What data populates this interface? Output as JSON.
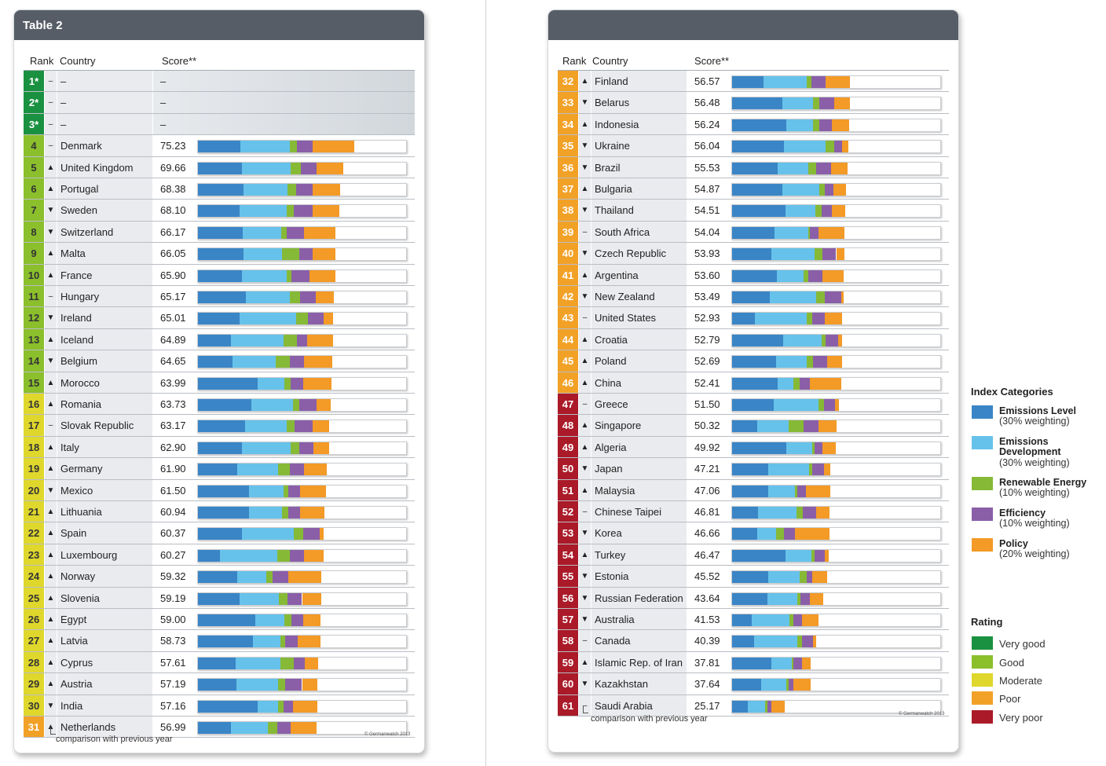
{
  "table_title": "Table 2",
  "headers": {
    "rank": "Rank",
    "country": "Country",
    "score": "Score**"
  },
  "footnote": "comparison with previous year",
  "copyright": "© Germanwatch 2013",
  "colors": {
    "emissions_level": "#3a85c6",
    "emissions_development": "#66c2ea",
    "renewable_energy": "#86b936",
    "efficiency": "#8a5fa8",
    "policy": "#f39a27",
    "very_good": "#1a9140",
    "good": "#8bbf2c",
    "moderate": "#dfd72c",
    "poor": "#f2a127",
    "very_poor": "#aa1a28"
  },
  "legend": {
    "title": "Index Categories",
    "items": [
      {
        "key": "emissions_level",
        "name": "Emissions Level",
        "weight": "(30% weighting)"
      },
      {
        "key": "emissions_development",
        "name": "Emissions Development",
        "weight": "(30% weighting)"
      },
      {
        "key": "renewable_energy",
        "name": "Renewable Energy",
        "weight": "(10% weighting)"
      },
      {
        "key": "efficiency",
        "name": "Efficiency",
        "weight": "(10% weighting)"
      },
      {
        "key": "policy",
        "name": "Policy",
        "weight": "(20% weighting)"
      }
    ]
  },
  "rating": {
    "title": "Rating",
    "items": [
      {
        "key": "very_good",
        "label": "Very good"
      },
      {
        "key": "good",
        "label": "Good"
      },
      {
        "key": "moderate",
        "label": "Moderate"
      },
      {
        "key": "poor",
        "label": "Poor"
      },
      {
        "key": "very_poor",
        "label": "Very poor"
      }
    ]
  },
  "chart_data": {
    "type": "bar",
    "stacked": true,
    "orientation": "horizontal",
    "title": "Table 2",
    "series_names": [
      "Emissions Level",
      "Emissions Development",
      "Renewable Energy",
      "Efficiency",
      "Policy"
    ],
    "xlim": [
      0,
      100
    ],
    "rows": [
      {
        "rank": "1*",
        "trend": "–",
        "country": "–",
        "score": "–",
        "rating": "very_good",
        "values": null
      },
      {
        "rank": "2*",
        "trend": "–",
        "country": "–",
        "score": "–",
        "rating": "very_good",
        "values": null
      },
      {
        "rank": "3*",
        "trend": "–",
        "country": "–",
        "score": "–",
        "rating": "very_good",
        "values": null
      },
      {
        "rank": "4",
        "trend": "–",
        "country": "Denmark",
        "score": "75.23",
        "rating": "good",
        "values": [
          20.5,
          23.5,
          3.5,
          7.5,
          20.2
        ]
      },
      {
        "rank": "5",
        "trend": "▲",
        "country": "United Kingdom",
        "score": "69.66",
        "rating": "good",
        "values": [
          21,
          23.5,
          5,
          7.5,
          12.7
        ]
      },
      {
        "rank": "6",
        "trend": "▲",
        "country": "Portugal",
        "score": "68.38",
        "rating": "good",
        "values": [
          22,
          21,
          4,
          8,
          13.4
        ]
      },
      {
        "rank": "7",
        "trend": "▼",
        "country": "Sweden",
        "score": "68.10",
        "rating": "good",
        "values": [
          20,
          22.5,
          3.5,
          9,
          13.1
        ]
      },
      {
        "rank": "8",
        "trend": "▼",
        "country": "Switzerland",
        "score": "66.17",
        "rating": "good",
        "values": [
          21.5,
          18.5,
          2.5,
          8.5,
          15.2
        ]
      },
      {
        "rank": "9",
        "trend": "▲",
        "country": "Malta",
        "score": "66.05",
        "rating": "good",
        "values": [
          22,
          18.5,
          8,
          6.5,
          11.1
        ]
      },
      {
        "rank": "10",
        "trend": "▲",
        "country": "France",
        "score": "65.90",
        "rating": "good",
        "values": [
          21,
          21.5,
          2.5,
          8.5,
          12.4
        ]
      },
      {
        "rank": "11",
        "trend": "–",
        "country": "Hungary",
        "score": "65.17",
        "rating": "good",
        "values": [
          23,
          21,
          5,
          7.5,
          8.7
        ]
      },
      {
        "rank": "12",
        "trend": "▼",
        "country": "Ireland",
        "score": "65.01",
        "rating": "good",
        "values": [
          20,
          27,
          6,
          7.5,
          4.5
        ]
      },
      {
        "rank": "13",
        "trend": "▲",
        "country": "Iceland",
        "score": "64.89",
        "rating": "good",
        "values": [
          16,
          25,
          6.5,
          5,
          12.4
        ]
      },
      {
        "rank": "14",
        "trend": "▼",
        "country": "Belgium",
        "score": "64.65",
        "rating": "good",
        "values": [
          16.5,
          21,
          6.5,
          7,
          13.7
        ]
      },
      {
        "rank": "15",
        "trend": "▲",
        "country": "Morocco",
        "score": "63.99",
        "rating": "good",
        "values": [
          28.5,
          13,
          3,
          6,
          13.5
        ]
      },
      {
        "rank": "16",
        "trend": "▲",
        "country": "Romania",
        "score": "63.73",
        "rating": "moderate",
        "values": [
          25.5,
          20,
          3,
          8.5,
          6.7
        ]
      },
      {
        "rank": "17",
        "trend": "–",
        "country": "Slovak Republic",
        "score": "63.17",
        "rating": "moderate",
        "values": [
          22.5,
          20,
          4,
          8.5,
          8.2
        ]
      },
      {
        "rank": "18",
        "trend": "▲",
        "country": "Italy",
        "score": "62.90",
        "rating": "moderate",
        "values": [
          21,
          23.5,
          4,
          7,
          7.4
        ]
      },
      {
        "rank": "19",
        "trend": "▲",
        "country": "Germany",
        "score": "61.90",
        "rating": "moderate",
        "values": [
          19,
          19.5,
          5.5,
          7,
          10.9
        ]
      },
      {
        "rank": "20",
        "trend": "▼",
        "country": "Mexico",
        "score": "61.50",
        "rating": "moderate",
        "values": [
          24.5,
          16.5,
          2.5,
          5.5,
          12.5
        ]
      },
      {
        "rank": "21",
        "trend": "▲",
        "country": "Lithuania",
        "score": "60.94",
        "rating": "moderate",
        "values": [
          24.5,
          16,
          3,
          5.5,
          11.9
        ]
      },
      {
        "rank": "22",
        "trend": "▲",
        "country": "Spain",
        "score": "60.37",
        "rating": "moderate",
        "values": [
          21,
          25,
          4.5,
          8,
          1.9
        ]
      },
      {
        "rank": "23",
        "trend": "▲",
        "country": "Luxembourg",
        "score": "60.27",
        "rating": "moderate",
        "values": [
          10.5,
          27.5,
          6,
          7,
          9.3
        ]
      },
      {
        "rank": "24",
        "trend": "▲",
        "country": "Norway",
        "score": "59.32",
        "rating": "moderate",
        "values": [
          19,
          14,
          3,
          7.5,
          15.8
        ]
      },
      {
        "rank": "25",
        "trend": "▲",
        "country": "Slovenia",
        "score": "59.19",
        "rating": "moderate",
        "values": [
          20,
          19,
          4,
          7,
          9.2
        ]
      },
      {
        "rank": "26",
        "trend": "▲",
        "country": "Egypt",
        "score": "59.00",
        "rating": "moderate",
        "values": [
          27.5,
          14,
          3.5,
          5.5,
          8.5
        ]
      },
      {
        "rank": "27",
        "trend": "▲",
        "country": "Latvia",
        "score": "58.73",
        "rating": "moderate",
        "values": [
          26.5,
          13,
          2.5,
          6,
          10.7
        ]
      },
      {
        "rank": "28",
        "trend": "▲",
        "country": "Cyprus",
        "score": "57.61",
        "rating": "moderate",
        "values": [
          18,
          21.5,
          6.5,
          5.5,
          6.1
        ]
      },
      {
        "rank": "29",
        "trend": "▲",
        "country": "Austria",
        "score": "57.19",
        "rating": "moderate",
        "values": [
          18.5,
          20,
          3.5,
          8,
          7.2
        ]
      },
      {
        "rank": "30",
        "trend": "▼",
        "country": "India",
        "score": "57.16",
        "rating": "moderate",
        "values": [
          28.5,
          10,
          2.5,
          4.5,
          11.7
        ]
      },
      {
        "rank": "31",
        "trend": "▲",
        "country": "Netherlands",
        "score": "56.99",
        "rating": "poor",
        "values": [
          16,
          17.5,
          4.5,
          6.5,
          12.5
        ]
      },
      {
        "rank": "32",
        "trend": "▲",
        "country": "Finland",
        "score": "56.57",
        "rating": "poor",
        "values": [
          15,
          21,
          2,
          7,
          11.6
        ]
      },
      {
        "rank": "33",
        "trend": "▼",
        "country": "Belarus",
        "score": "56.48",
        "rating": "poor",
        "values": [
          24,
          15,
          3,
          7,
          7.5
        ]
      },
      {
        "rank": "34",
        "trend": "▲",
        "country": "Indonesia",
        "score": "56.24",
        "rating": "poor",
        "values": [
          26,
          13,
          3,
          6,
          8.2
        ]
      },
      {
        "rank": "35",
        "trend": "▼",
        "country": "Ukraine",
        "score": "56.04",
        "rating": "poor",
        "values": [
          25,
          20,
          4,
          4,
          3
        ]
      },
      {
        "rank": "36",
        "trend": "▼",
        "country": "Brazil",
        "score": "55.53",
        "rating": "poor",
        "values": [
          22,
          14.5,
          4,
          7,
          8
        ]
      },
      {
        "rank": "37",
        "trend": "▲",
        "country": "Bulgaria",
        "score": "54.87",
        "rating": "poor",
        "values": [
          24,
          18,
          2.5,
          4,
          6.4
        ]
      },
      {
        "rank": "38",
        "trend": "▼",
        "country": "Thailand",
        "score": "54.51",
        "rating": "poor",
        "values": [
          25.5,
          14.5,
          3,
          5,
          6.5
        ]
      },
      {
        "rank": "39",
        "trend": "–",
        "country": "South Africa",
        "score": "54.04",
        "rating": "poor",
        "values": [
          20.5,
          16,
          1,
          4,
          12.5
        ]
      },
      {
        "rank": "40",
        "trend": "▼",
        "country": "Czech Republic",
        "score": "53.93",
        "rating": "poor",
        "values": [
          19,
          20.5,
          4,
          6.5,
          4
        ]
      },
      {
        "rank": "41",
        "trend": "▲",
        "country": "Argentina",
        "score": "53.60",
        "rating": "poor",
        "values": [
          21.5,
          13,
          2,
          7,
          10.1
        ]
      },
      {
        "rank": "42",
        "trend": "▼",
        "country": "New Zealand",
        "score": "53.49",
        "rating": "poor",
        "values": [
          18,
          22.5,
          4,
          8,
          1
        ]
      },
      {
        "rank": "43",
        "trend": "–",
        "country": "United States",
        "score": "52.93",
        "rating": "poor",
        "values": [
          11,
          25,
          2.5,
          6,
          8.4
        ]
      },
      {
        "rank": "44",
        "trend": "▲",
        "country": "Croatia",
        "score": "52.79",
        "rating": "poor",
        "values": [
          24.5,
          18.5,
          2,
          6,
          1.8
        ]
      },
      {
        "rank": "45",
        "trend": "▲",
        "country": "Poland",
        "score": "52.69",
        "rating": "poor",
        "values": [
          21,
          15,
          3,
          6.5,
          7.2
        ]
      },
      {
        "rank": "46",
        "trend": "▲",
        "country": "China",
        "score": "52.41",
        "rating": "poor",
        "values": [
          22,
          7.5,
          3,
          5,
          14.9
        ]
      },
      {
        "rank": "47",
        "trend": "–",
        "country": "Greece",
        "score": "51.50",
        "rating": "very_poor",
        "values": [
          20,
          21.5,
          2.5,
          5.5,
          2
        ]
      },
      {
        "rank": "48",
        "trend": "▲",
        "country": "Singapore",
        "score": "50.32",
        "rating": "very_poor",
        "values": [
          12,
          15,
          7.5,
          7,
          8.8
        ]
      },
      {
        "rank": "49",
        "trend": "▲",
        "country": "Algeria",
        "score": "49.92",
        "rating": "very_poor",
        "values": [
          26,
          12.5,
          1,
          4,
          6.4
        ]
      },
      {
        "rank": "50",
        "trend": "▼",
        "country": "Japan",
        "score": "47.21",
        "rating": "very_poor",
        "values": [
          17.5,
          19.5,
          1.5,
          5.5,
          3.2
        ]
      },
      {
        "rank": "51",
        "trend": "▲",
        "country": "Malaysia",
        "score": "47.06",
        "rating": "very_poor",
        "values": [
          17.5,
          12.5,
          1.5,
          4,
          11.6
        ]
      },
      {
        "rank": "52",
        "trend": "–",
        "country": "Chinese Taipei",
        "score": "46.81",
        "rating": "very_poor",
        "values": [
          12.5,
          18.5,
          3,
          6.5,
          6.3
        ]
      },
      {
        "rank": "53",
        "trend": "▼",
        "country": "Korea",
        "score": "46.66",
        "rating": "very_poor",
        "values": [
          12,
          9,
          4,
          5,
          16.7
        ]
      },
      {
        "rank": "54",
        "trend": "▲",
        "country": "Turkey",
        "score": "46.47",
        "rating": "very_poor",
        "values": [
          25.5,
          12.5,
          1.5,
          5,
          2
        ]
      },
      {
        "rank": "55",
        "trend": "▼",
        "country": "Estonia",
        "score": "45.52",
        "rating": "very_poor",
        "values": [
          17.5,
          15,
          3.5,
          2.5,
          7
        ]
      },
      {
        "rank": "56",
        "trend": "▼",
        "country": "Russian Federation",
        "score": "43.64",
        "rating": "very_poor",
        "values": [
          17,
          14.5,
          1.5,
          4.5,
          6.1
        ]
      },
      {
        "rank": "57",
        "trend": "▼",
        "country": "Australia",
        "score": "41.53",
        "rating": "very_poor",
        "values": [
          9.5,
          18,
          2,
          4,
          8
        ]
      },
      {
        "rank": "58",
        "trend": "–",
        "country": "Canada",
        "score": "40.39",
        "rating": "very_poor",
        "values": [
          10.5,
          21,
          2,
          5.5,
          1.4
        ]
      },
      {
        "rank": "59",
        "trend": "▲",
        "country": "Islamic Rep. of Iran",
        "score": "37.81",
        "rating": "very_poor",
        "values": [
          19,
          9.5,
          1,
          4,
          4.3
        ]
      },
      {
        "rank": "60",
        "trend": "▼",
        "country": "Kazakhstan",
        "score": "37.64",
        "rating": "very_poor",
        "values": [
          14,
          12,
          1,
          2.5,
          8.1
        ]
      },
      {
        "rank": "61",
        "trend": "–",
        "country": "Saudi Arabia",
        "score": "25.17",
        "rating": "very_poor",
        "values": [
          7.5,
          8.5,
          1,
          2,
          6.2
        ]
      }
    ]
  }
}
